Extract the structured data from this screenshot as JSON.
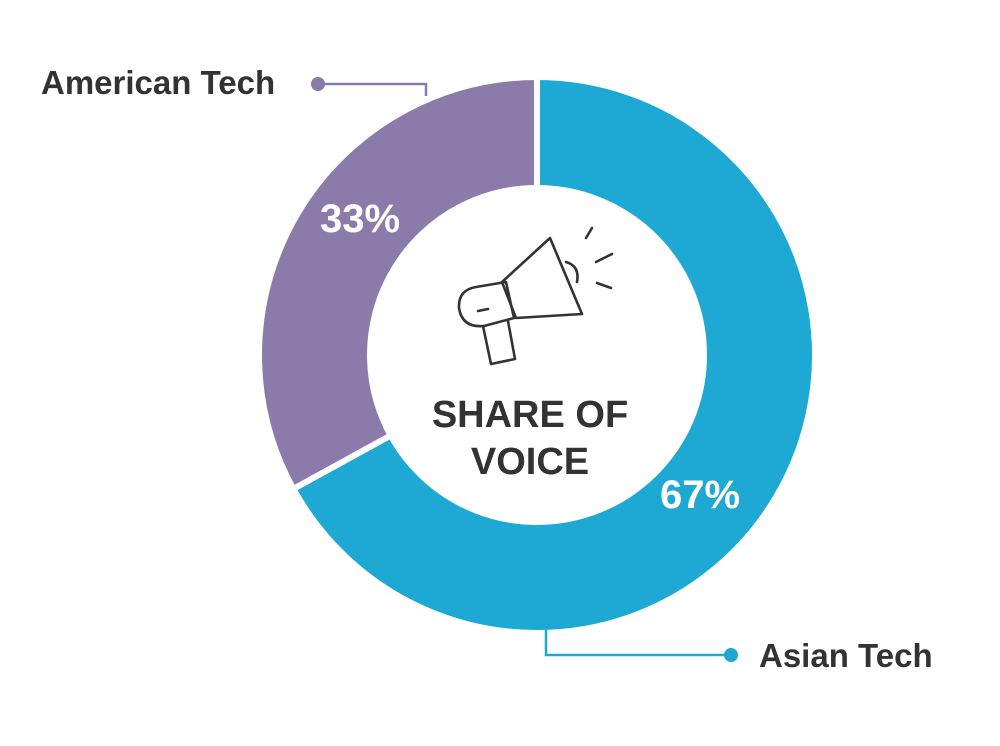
{
  "chart_data": {
    "type": "pie",
    "style": "donut",
    "center_title_lines": [
      "SHARE OF",
      "VOICE"
    ],
    "center_icon": "megaphone-icon",
    "slices": [
      {
        "name": "Asian Tech",
        "value": 67,
        "label": "67%",
        "color": "#1ea9d4"
      },
      {
        "name": "American Tech",
        "value": 33,
        "label": "33%",
        "color": "#8b7baa"
      }
    ],
    "start_angle": "top",
    "direction": "clockwise",
    "slice_separator_color": "#ffffff"
  }
}
